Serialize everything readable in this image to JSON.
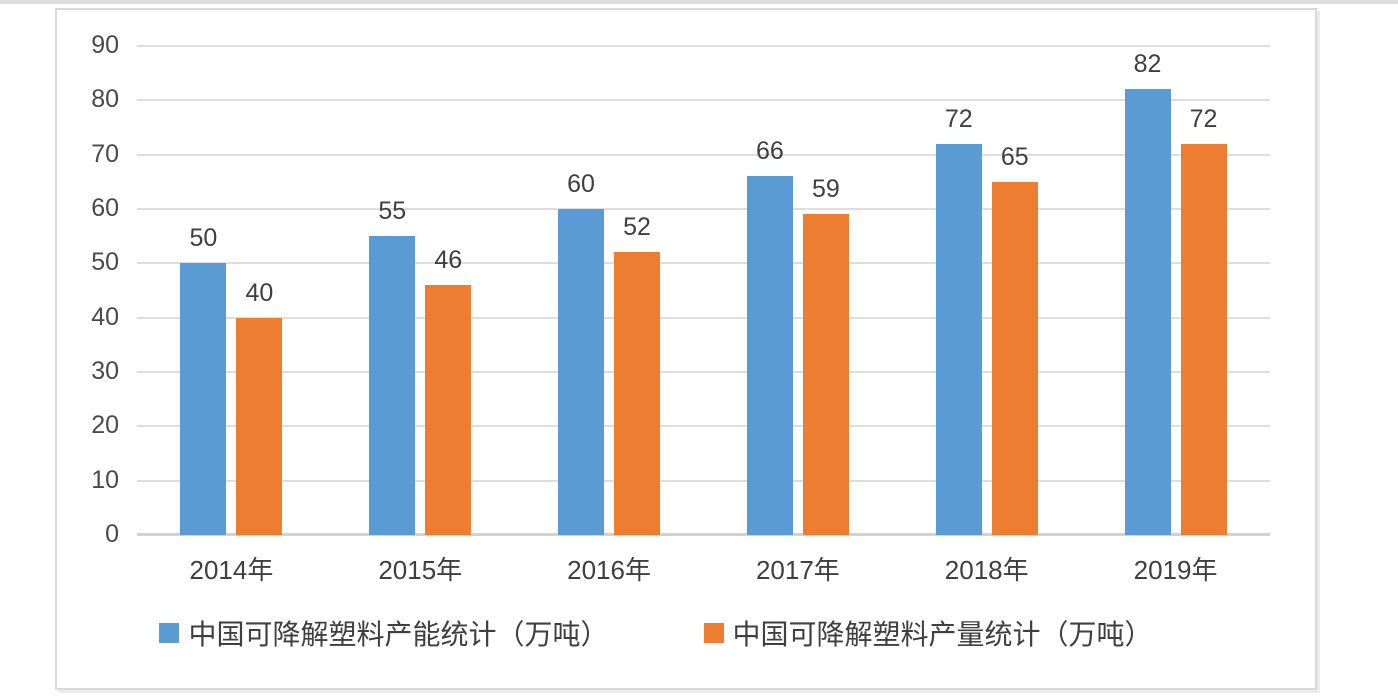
{
  "chart_data": {
    "type": "bar",
    "categories": [
      "2014年",
      "2015年",
      "2016年",
      "2017年",
      "2018年",
      "2019年"
    ],
    "series": [
      {
        "name": "中国可降解塑料产能统计（万吨）",
        "color": "#5B9BD5",
        "values": [
          50,
          55,
          60,
          66,
          72,
          82
        ]
      },
      {
        "name": "中国可降解塑料产量统计（万吨）",
        "color": "#ED7D31",
        "values": [
          40,
          46,
          52,
          59,
          65,
          72
        ]
      }
    ],
    "title": "",
    "xlabel": "",
    "ylabel": "",
    "ylim": [
      0,
      90
    ],
    "yticks": [
      0,
      10,
      20,
      30,
      40,
      50,
      60,
      70,
      80,
      90
    ],
    "grid": true,
    "legend_position": "bottom",
    "colors": {
      "grid_line": "#dedede",
      "axis_line": "#d2d2d2",
      "text": "#3f3f3f",
      "frame_border": "#d9d9d9",
      "background": "#ffffff"
    }
  }
}
